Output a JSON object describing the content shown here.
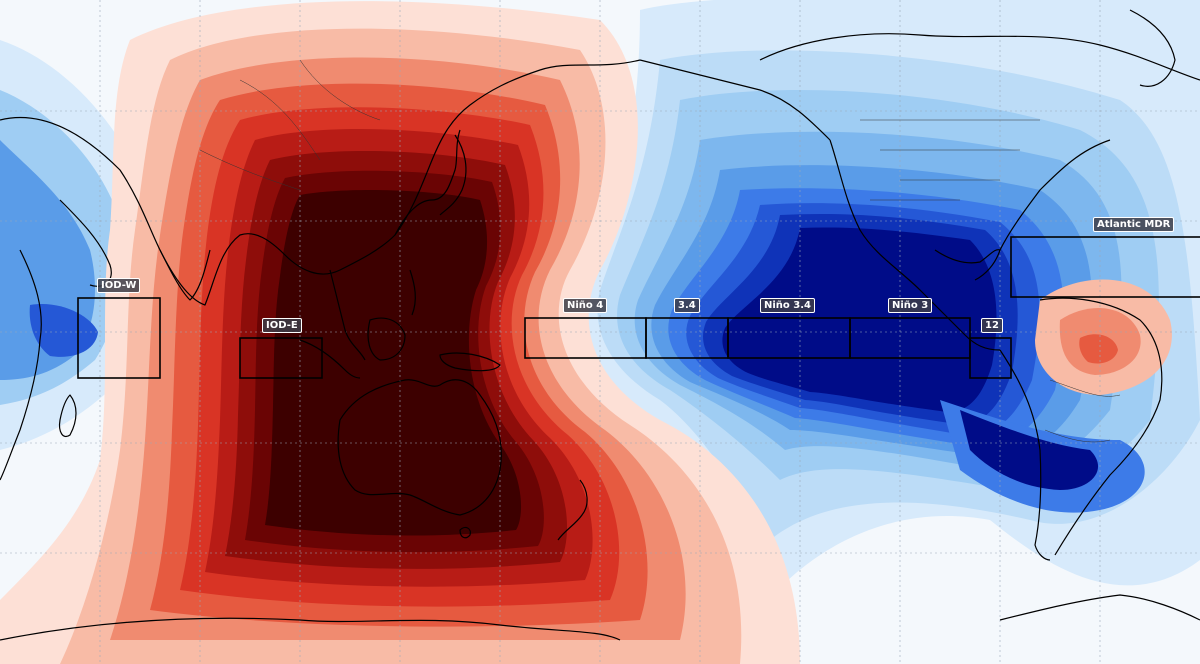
{
  "map": {
    "projection": "equirectangular",
    "regions": [
      {
        "id": "iod-w",
        "label": "IOD-W"
      },
      {
        "id": "iod-e",
        "label": "IOD-E"
      },
      {
        "id": "nino-4",
        "label": "Niño 4"
      },
      {
        "id": "nino-3-4-short",
        "label": "3.4"
      },
      {
        "id": "nino-3-4",
        "label": "Niño 3.4"
      },
      {
        "id": "nino-3",
        "label": "Niño 3"
      },
      {
        "id": "nino-12",
        "label": "12"
      },
      {
        "id": "atlantic-mdr",
        "label": "Atlantic MDR"
      }
    ],
    "colors": {
      "warm_max": "#3d0000",
      "warm_mid": "#d93425",
      "warm_min": "#fde0d6",
      "neutral": "#f4f8fc",
      "cool_min": "#d7eafb",
      "cool_mid": "#3d7be8",
      "cool_max": "#000c88",
      "coastline": "#000000",
      "grid": "#9aa8b8"
    }
  }
}
